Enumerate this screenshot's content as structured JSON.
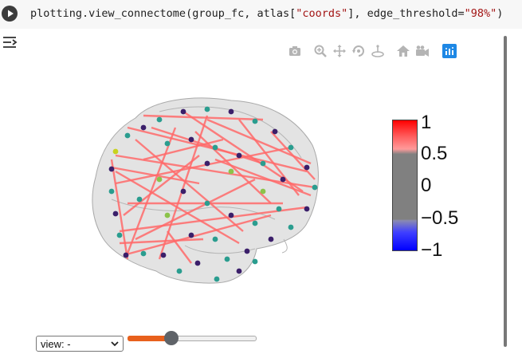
{
  "cell": {
    "code_prefix": "plotting.view_connectome(group_fc, atlas[",
    "code_str1": "\"coords\"",
    "code_mid": "], edge_threshold=",
    "code_str2": "\"98%\"",
    "code_suffix": ")"
  },
  "toolbar": {
    "icons": [
      "camera-icon",
      "zoom-icon",
      "pan-icon",
      "orbit-rotation-icon",
      "turntable-rotation-icon",
      "reset-camera-home-icon",
      "reset-camera-last-save-icon",
      "plotly-logo-icon"
    ]
  },
  "colorbar": {
    "labels": [
      "1",
      "0.5",
      "0",
      "−0.5",
      "−1"
    ],
    "colorscale": [
      "#0000ff",
      "#808080",
      "#ff0000"
    ]
  },
  "controls": {
    "view_select_value": "view: -",
    "slider_value_fraction": 0.33,
    "slider_color": "#e8601c"
  }
}
